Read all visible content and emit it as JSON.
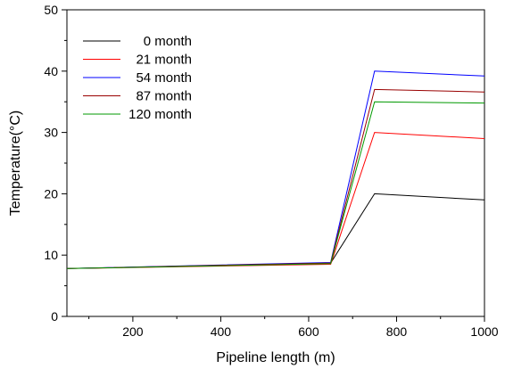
{
  "chart_data": {
    "type": "line",
    "title": "",
    "xlabel": "Pipeline length (m)",
    "ylabel": "Temperature(°C)",
    "xlim": [
      50,
      1000
    ],
    "ylim": [
      0,
      50
    ],
    "xticks": [
      200,
      400,
      600,
      800,
      1000
    ],
    "xtick_labels": [
      "200",
      "400",
      "600",
      "800",
      "1000"
    ],
    "yticks": [
      0,
      10,
      20,
      30,
      40,
      50
    ],
    "ytick_labels": [
      "0",
      "10",
      "20",
      "30",
      "40",
      "50"
    ],
    "grid": false,
    "legend_position": "top-left",
    "series": [
      {
        "name": "0 month",
        "color": "#000000",
        "x": [
          50,
          650,
          750,
          1000
        ],
        "y": [
          7.8,
          8.7,
          20.0,
          19.0
        ]
      },
      {
        "name": "21 month",
        "color": "#ff0000",
        "x": [
          50,
          650,
          750,
          1000
        ],
        "y": [
          7.8,
          8.5,
          30.0,
          29.0
        ]
      },
      {
        "name": "54 month",
        "color": "#0000ff",
        "x": [
          50,
          650,
          750,
          1000
        ],
        "y": [
          7.8,
          8.8,
          40.0,
          39.2
        ]
      },
      {
        "name": "87 month",
        "color": "#990000",
        "x": [
          50,
          650,
          750,
          1000
        ],
        "y": [
          7.8,
          8.7,
          37.0,
          36.6
        ]
      },
      {
        "name": "120 month",
        "color": "#009900",
        "x": [
          50,
          650,
          750,
          1000
        ],
        "y": [
          7.8,
          8.6,
          35.0,
          34.8
        ]
      }
    ]
  }
}
